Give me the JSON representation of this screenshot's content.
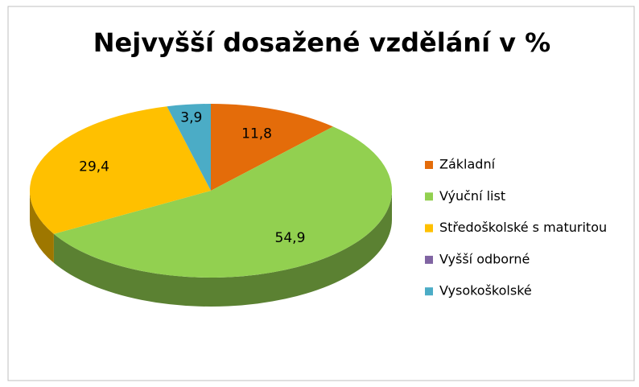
{
  "chart_data": {
    "type": "pie3d",
    "title": "Nejvyšší dosažené vzdělání v %",
    "categories": [
      "Základní",
      "Výuční list",
      "Středoškolské s maturitou",
      "Vyšší odborné",
      "Vysokoškolské"
    ],
    "values": [
      11.8,
      54.9,
      29.4,
      0,
      3.9
    ],
    "value_labels": [
      "11,8",
      "54,9",
      "29,4",
      null,
      "3,9"
    ],
    "colors": [
      "#e46c0a",
      "#92d050",
      "#ffc000",
      "#8064a2",
      "#4bacc6"
    ],
    "legend": "right"
  }
}
